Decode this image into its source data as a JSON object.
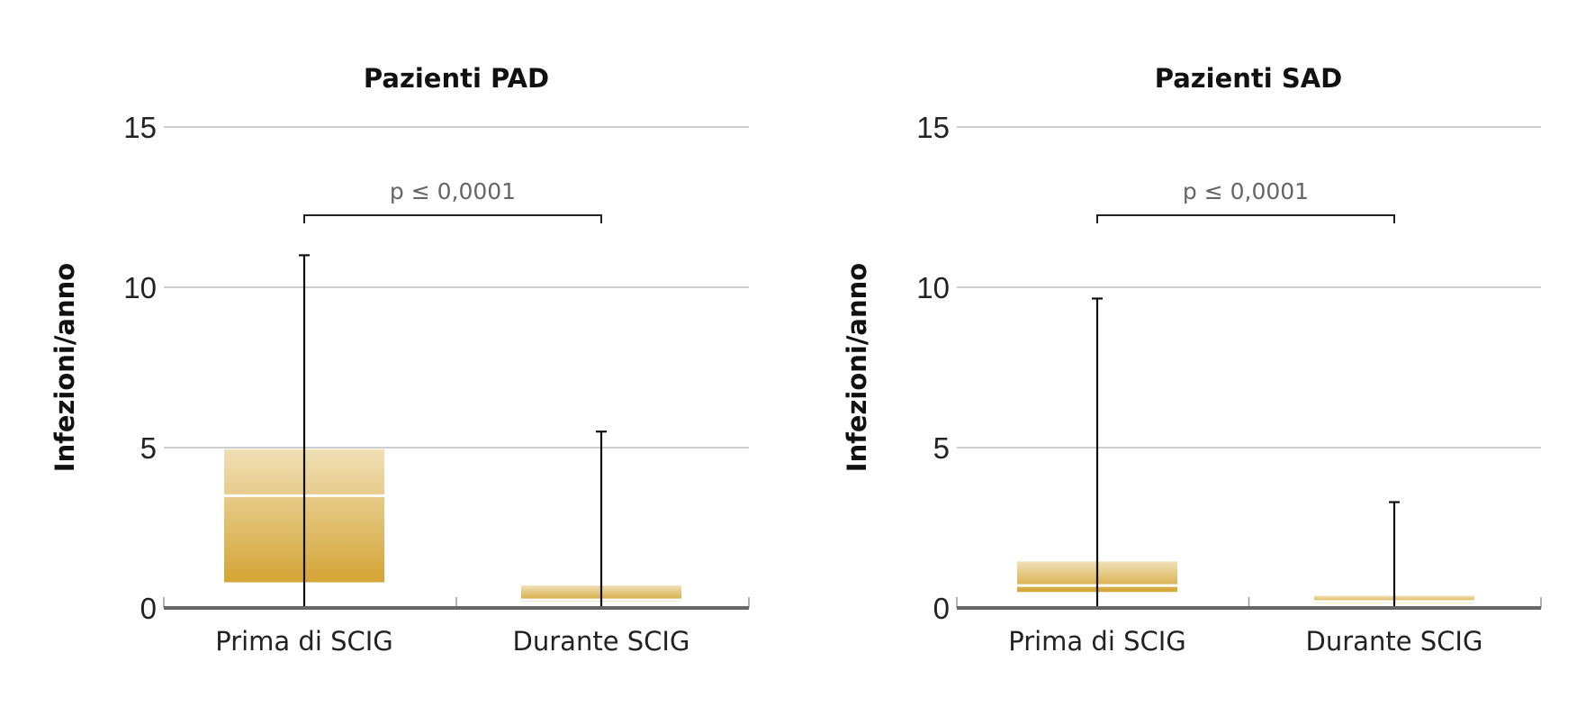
{
  "chart_data": [
    {
      "type": "box",
      "title": "Pazienti PAD",
      "ylabel": "Infezioni/anno",
      "xlabel": "",
      "ylim": [
        0,
        15
      ],
      "yticks": [
        "0",
        "5",
        "10",
        "15"
      ],
      "grid": true,
      "categories": [
        "Prima di SCIG",
        "Durante SCIG"
      ],
      "boxes": [
        {
          "min": 0,
          "q1": 0.8,
          "median": 3.5,
          "q3": 4.95,
          "max": 11
        },
        {
          "min": 0,
          "q1": 0.2,
          "median": 0.25,
          "q3": 0.7,
          "max": 5.5
        }
      ],
      "annotation": "p ≤ 0,0001"
    },
    {
      "type": "box",
      "title": "Pazienti SAD",
      "ylabel": "Infezioni/anno",
      "xlabel": "",
      "ylim": [
        0,
        15
      ],
      "yticks": [
        "0",
        "5",
        "10",
        "15"
      ],
      "grid": true,
      "categories": [
        "Prima di SCIG",
        "Durante SCIG"
      ],
      "boxes": [
        {
          "min": 0,
          "q1": 0.5,
          "median": 0.7,
          "q3": 1.45,
          "max": 9.65
        },
        {
          "min": 0,
          "q1": 0.15,
          "median": 0.2,
          "q3": 0.38,
          "max": 3.3
        }
      ],
      "annotation": "p ≤ 0,0001"
    }
  ],
  "colors": {
    "box_dark": "#d4a535",
    "box_light": "#f0e0b6",
    "axis": "#666666",
    "grid": "#bdbdbd"
  }
}
